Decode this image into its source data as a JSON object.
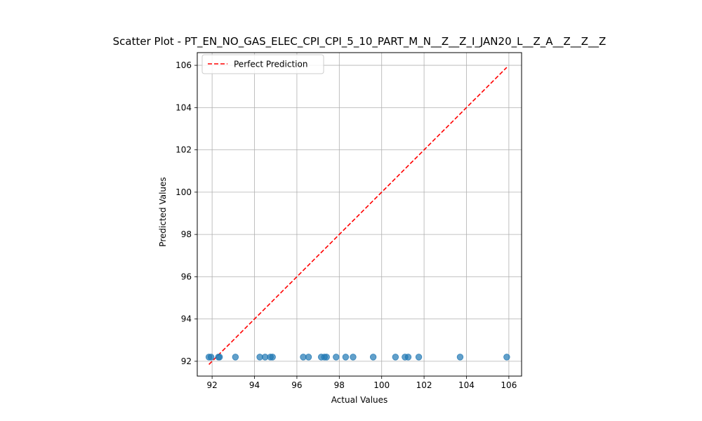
{
  "chart_data": {
    "type": "scatter",
    "title": "Scatter Plot - PT_EN_NO_GAS_ELEC_CPI_CPI_5_10_PART_M_N__Z__Z_I_JAN20_L__Z_A__Z__Z__Z",
    "xlabel": "Actual Values",
    "ylabel": "Predicted Values",
    "xlim": [
      91.3,
      106.6
    ],
    "ylim": [
      91.3,
      106.6
    ],
    "xticks": [
      92,
      94,
      96,
      98,
      100,
      102,
      104,
      106
    ],
    "yticks": [
      92,
      94,
      96,
      98,
      100,
      102,
      104,
      106
    ],
    "grid": true,
    "legend": {
      "position": "upper-left",
      "entries": [
        "Perfect Prediction"
      ]
    },
    "series": [
      {
        "type": "scatter",
        "color": "#1f77b4",
        "points": [
          {
            "x": 91.85,
            "y": 92.2
          },
          {
            "x": 91.95,
            "y": 92.2
          },
          {
            "x": 92.3,
            "y": 92.2
          },
          {
            "x": 92.35,
            "y": 92.2
          },
          {
            "x": 93.1,
            "y": 92.2
          },
          {
            "x": 94.25,
            "y": 92.2
          },
          {
            "x": 94.5,
            "y": 92.2
          },
          {
            "x": 94.75,
            "y": 92.2
          },
          {
            "x": 94.85,
            "y": 92.2
          },
          {
            "x": 96.3,
            "y": 92.2
          },
          {
            "x": 96.55,
            "y": 92.2
          },
          {
            "x": 97.15,
            "y": 92.2
          },
          {
            "x": 97.3,
            "y": 92.2
          },
          {
            "x": 97.4,
            "y": 92.2
          },
          {
            "x": 97.85,
            "y": 92.2
          },
          {
            "x": 98.3,
            "y": 92.2
          },
          {
            "x": 98.65,
            "y": 92.2
          },
          {
            "x": 99.6,
            "y": 92.2
          },
          {
            "x": 100.65,
            "y": 92.2
          },
          {
            "x": 101.1,
            "y": 92.2
          },
          {
            "x": 101.25,
            "y": 92.2
          },
          {
            "x": 101.75,
            "y": 92.2
          },
          {
            "x": 103.7,
            "y": 92.2
          },
          {
            "x": 105.9,
            "y": 92.2
          }
        ]
      },
      {
        "name": "Perfect Prediction",
        "type": "line",
        "style": "dashed",
        "color": "#ff0000",
        "x": [
          91.85,
          105.9
        ],
        "y": [
          91.85,
          105.9
        ]
      }
    ]
  }
}
